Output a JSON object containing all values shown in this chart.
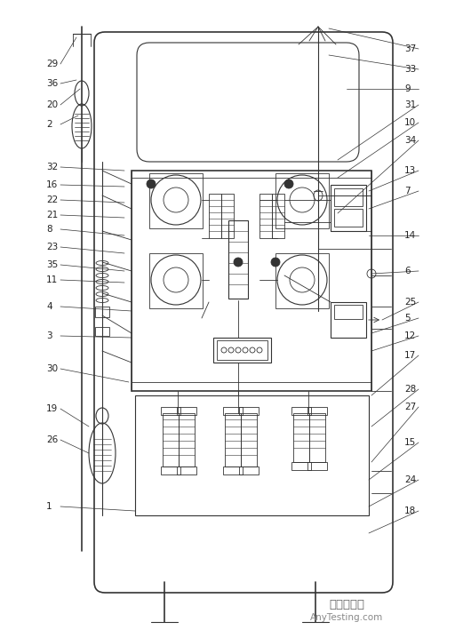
{
  "bg_color": "#ffffff",
  "line_color": "#333333",
  "label_color": "#222222",
  "fig_width": 5.3,
  "fig_height": 7.09,
  "dpi": 100,
  "watermark1": "嘉峪检测网",
  "watermark2": "AnyTesting.com",
  "left_labels": [
    "29",
    "36",
    "20",
    "2",
    "32",
    "16",
    "22",
    "21",
    "8",
    "23",
    "35",
    "11",
    "4",
    "3",
    "30",
    "19",
    "26",
    "1"
  ],
  "right_labels": [
    "37",
    "33",
    "9",
    "31",
    "10",
    "34",
    "13",
    "7",
    "14",
    "6",
    "25",
    "5",
    "12",
    "17",
    "28",
    "27",
    "15",
    "24",
    "18"
  ]
}
